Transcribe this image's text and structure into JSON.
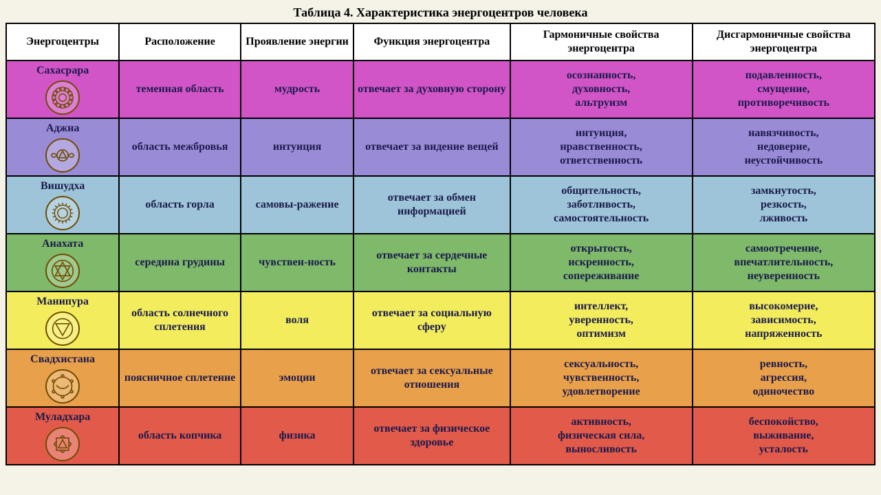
{
  "caption": "Таблица 4. Характеристика энергоцентров человека",
  "headers": {
    "c1": "Энергоцентры",
    "c2": "Расположение",
    "c3": "Проявление энергии",
    "c4": "Функция энергоцентра",
    "c5": "Гармоничные свойства энергоцентра",
    "c6": "Дисгармоничные свойства энергоцентра"
  },
  "rows": [
    {
      "name": "Сахасрара",
      "location": "теменная область",
      "energy": "мудрость",
      "function": "отвечает за духовную сторону",
      "harmonic": "осознанность, духовность, альтруизм",
      "disharmonic": "подавленность, смущение, противоречивость",
      "bg_color": "#d255c8",
      "icon_stroke": "#704b00",
      "icon_shape": "lotus"
    },
    {
      "name": "Аджна",
      "location": "область межбровья",
      "energy": "интуиция",
      "function": "отвечает за видение вещей",
      "harmonic": "интуиция, нравственность, ответственность",
      "disharmonic": "навязчивость, недоверие, неустойчивость",
      "bg_color": "#9a8bd6",
      "icon_stroke": "#704b00",
      "icon_shape": "two-petal"
    },
    {
      "name": "Вишудха",
      "location": "область горла",
      "energy": "самовы-ражение",
      "function": "отвечает за обмен информацией",
      "harmonic": "общительность, заботливость, самостоятельность",
      "disharmonic": "замкнутость, резкость, лживость",
      "bg_color": "#9dc4d8",
      "icon_stroke": "#704b00",
      "icon_shape": "circle-petals"
    },
    {
      "name": "Анахата",
      "location": "середина грудины",
      "energy": "чувствен-ность",
      "function": "отвечает за сердечные контакты",
      "harmonic": "открытость, искренность, сопереживание",
      "disharmonic": "самоотречение, впечатлительность, неуверенность",
      "bg_color": "#7fb96a",
      "icon_stroke": "#704b00",
      "icon_shape": "hexagram"
    },
    {
      "name": "Манипура",
      "location": "область солнечного сплетения",
      "energy": "воля",
      "function": "отвечает за социальную сферу",
      "harmonic": "интеллект, уверенность, оптимизм",
      "disharmonic": "высокомерие, зависимость, напряженность",
      "bg_color": "#f3ed5e",
      "icon_stroke": "#704b00",
      "icon_shape": "triangle-down"
    },
    {
      "name": "Свадхистана",
      "location": "поясничное сплетение",
      "energy": "эмоции",
      "function": "отвечает за сексуальные отношения",
      "harmonic": "сексуальность, чувственность, удовлетворение",
      "disharmonic": "ревность, агрессия, одиночество",
      "bg_color": "#e9a04a",
      "icon_stroke": "#704b00",
      "icon_shape": "crescent"
    },
    {
      "name": "Муладхара",
      "location": "область копчика",
      "energy": "физика",
      "function": "отвечает за физическое здоровье",
      "harmonic": "активность, физическая сила, выносливость",
      "disharmonic": "беспокойство, выживание, усталость",
      "bg_color": "#e25a4a",
      "icon_stroke": "#704b00",
      "icon_shape": "square"
    }
  ],
  "text_color": "#1a1a4a",
  "border_color": "#000000",
  "header_bg": "#ffffff",
  "body_bg": "#f5f2e8"
}
